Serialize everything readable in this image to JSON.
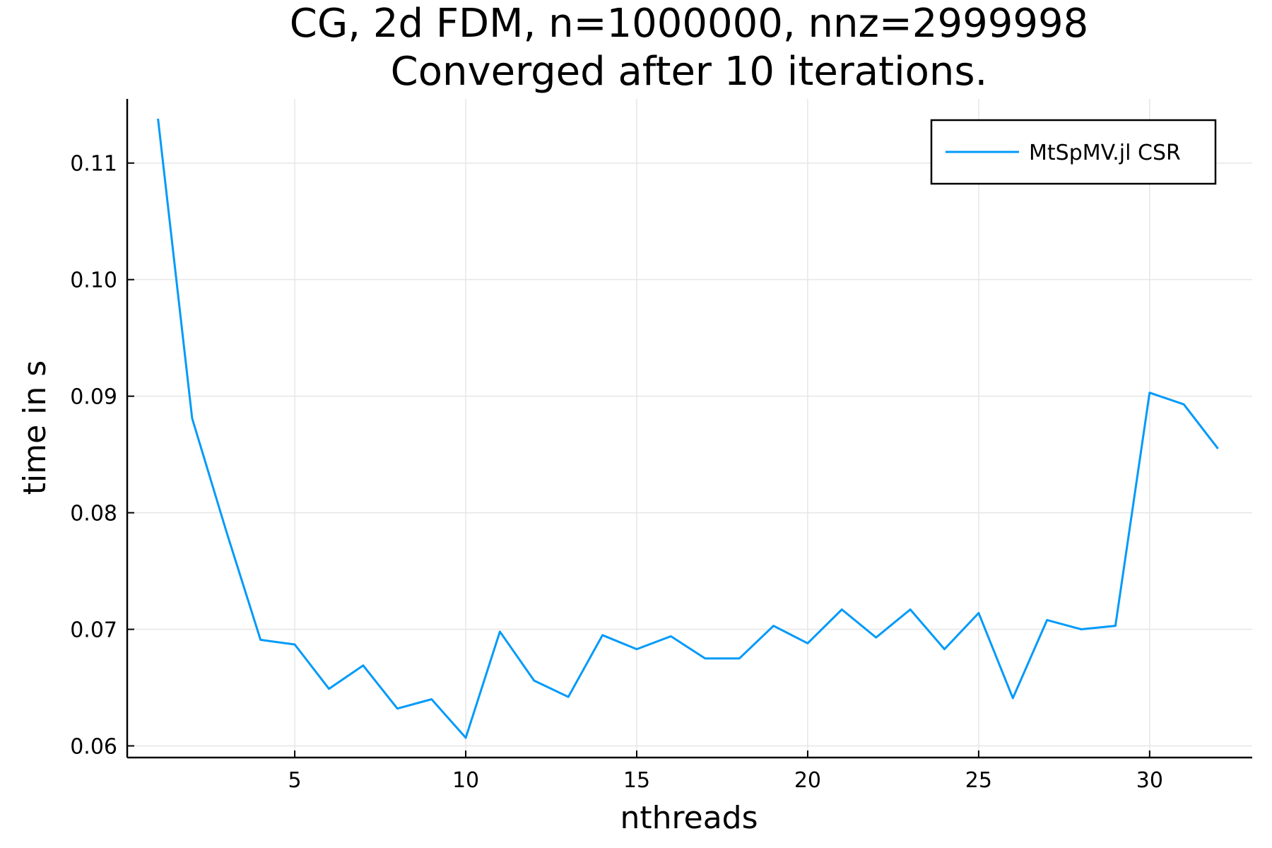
{
  "chart_data": {
    "type": "line",
    "title": "CG, 2d FDM, n=1000000, nnz=2999998",
    "subtitle": "Converged after 10 iterations.",
    "xlabel": "nthreads",
    "ylabel": "time in s",
    "xlim": [
      0.1,
      33
    ],
    "ylim": [
      0.059,
      0.1155
    ],
    "xticks": [
      5,
      10,
      15,
      20,
      25,
      30
    ],
    "yticks": [
      0.06,
      0.07,
      0.08,
      0.09,
      0.1,
      0.11
    ],
    "ytick_labels": [
      "0.06",
      "0.07",
      "0.08",
      "0.09",
      "0.10",
      "0.11"
    ],
    "grid": true,
    "legend_position": "top-right",
    "series": [
      {
        "name": "MtSpMV.jl CSR",
        "color": "#009af9",
        "x": [
          1,
          2,
          3,
          4,
          5,
          6,
          7,
          8,
          9,
          10,
          11,
          12,
          13,
          14,
          15,
          16,
          17,
          18,
          19,
          20,
          21,
          22,
          23,
          24,
          25,
          26,
          27,
          28,
          29,
          30,
          31,
          32
        ],
        "y": [
          0.1138,
          0.0881,
          0.0784,
          0.0691,
          0.0687,
          0.0649,
          0.0669,
          0.0632,
          0.064,
          0.0607,
          0.0698,
          0.0656,
          0.0642,
          0.0695,
          0.0683,
          0.0694,
          0.0675,
          0.0675,
          0.0703,
          0.0688,
          0.0717,
          0.0693,
          0.0717,
          0.0683,
          0.0714,
          0.0641,
          0.0708,
          0.07,
          0.0703,
          0.0903,
          0.0893,
          0.0855
        ]
      }
    ]
  }
}
